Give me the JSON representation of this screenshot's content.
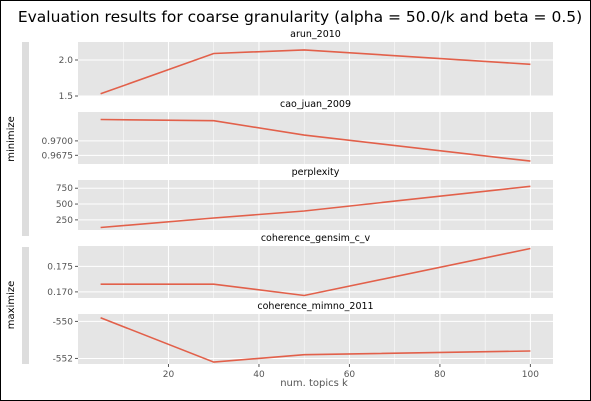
{
  "figure": {
    "title": "Evaluation results for coarse granularity (alpha = 50.0/k and beta = 0.5)",
    "xlabel": "num. topics k",
    "groups": [
      "minimize",
      "maximize"
    ],
    "colors": {
      "panel_bg": "#e5e5e5",
      "grid": "#ffffff",
      "line": "#e2604a",
      "group_bar": "#dddddd"
    }
  },
  "chart_data": [
    {
      "type": "line",
      "title": "arun_2010",
      "group": "minimize",
      "x": [
        5,
        30,
        50,
        100
      ],
      "y": [
        1.53,
        2.09,
        2.14,
        1.94
      ],
      "ylim": [
        1.5,
        2.25
      ],
      "yticks": [
        1.5,
        2.0
      ],
      "yticklabels": [
        "1.5",
        "2.0"
      ],
      "xlim": [
        0,
        105
      ],
      "xticks": [
        20,
        40,
        60,
        80,
        100
      ],
      "show_xticklabels": false,
      "grid": true
    },
    {
      "type": "line",
      "title": "cao_juan_2009",
      "group": "minimize",
      "x": [
        5,
        30,
        50,
        100
      ],
      "y": [
        0.9737,
        0.9735,
        0.971,
        0.9665
      ],
      "ylim": [
        0.966,
        0.975
      ],
      "yticks": [
        0.9675,
        0.97
      ],
      "yticklabels": [
        "0.9675",
        "0.9700"
      ],
      "xlim": [
        0,
        105
      ],
      "xticks": [
        20,
        40,
        60,
        80,
        100
      ],
      "show_xticklabels": false,
      "grid": true
    },
    {
      "type": "line",
      "title": "perplexity",
      "group": "minimize",
      "x": [
        5,
        30,
        50,
        100
      ],
      "y": [
        130,
        280,
        390,
        780
      ],
      "ylim": [
        90,
        880
      ],
      "yticks": [
        250,
        500,
        750
      ],
      "yticklabels": [
        "250",
        "500",
        "750"
      ],
      "xlim": [
        0,
        105
      ],
      "xticks": [
        20,
        40,
        60,
        80,
        100
      ],
      "show_xticklabels": false,
      "grid": true
    },
    {
      "type": "line",
      "title": "coherence_gensim_c_v",
      "group": "maximize",
      "x": [
        5,
        30,
        50,
        100
      ],
      "y": [
        0.1715,
        0.1715,
        0.1693,
        0.1785
      ],
      "ylim": [
        0.1688,
        0.179
      ],
      "yticks": [
        0.17,
        0.175
      ],
      "yticklabels": [
        "0.170",
        "0.175"
      ],
      "xlim": [
        0,
        105
      ],
      "xticks": [
        20,
        40,
        60,
        80,
        100
      ],
      "show_xticklabels": false,
      "grid": true
    },
    {
      "type": "line",
      "title": "coherence_mimno_2011",
      "group": "maximize",
      "x": [
        5,
        30,
        50,
        100
      ],
      "y": [
        -549.8,
        -552.2,
        -551.8,
        -551.6
      ],
      "ylim": [
        -552.3,
        -549.6
      ],
      "yticks": [
        -552,
        -550
      ],
      "yticklabels": [
        "-552",
        "-550"
      ],
      "xlim": [
        0,
        105
      ],
      "xticks": [
        20,
        40,
        60,
        80,
        100
      ],
      "xticklabels": [
        "20",
        "40",
        "60",
        "80",
        "100"
      ],
      "show_xticklabels": true,
      "grid": true
    }
  ]
}
